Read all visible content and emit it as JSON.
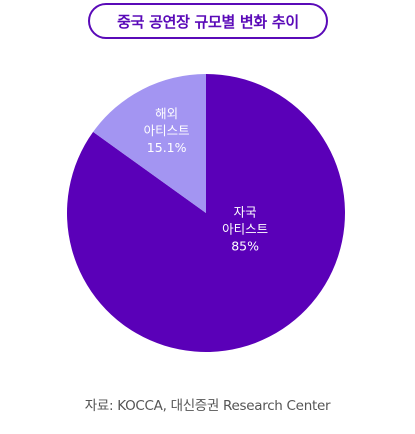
{
  "title": "중국 공연장 규모별 변화 추이",
  "source": "자료: KOCCA, 대신증권 Research Center",
  "colors": {
    "accent": "#5a0ab8",
    "domestic": "#5a00b8",
    "overseas": "#a395f2"
  },
  "chart_data": {
    "type": "pie",
    "title": "중국 공연장 규모별 변화 추이",
    "slices": [
      {
        "label_lines": [
          "자국",
          "아티스트"
        ],
        "percent_text": "85%",
        "value": 85,
        "color": "#5a00b8"
      },
      {
        "label_lines": [
          "해외",
          "아티스트"
        ],
        "percent_text": "15.1%",
        "value": 15.1,
        "color": "#a395f2"
      }
    ]
  }
}
